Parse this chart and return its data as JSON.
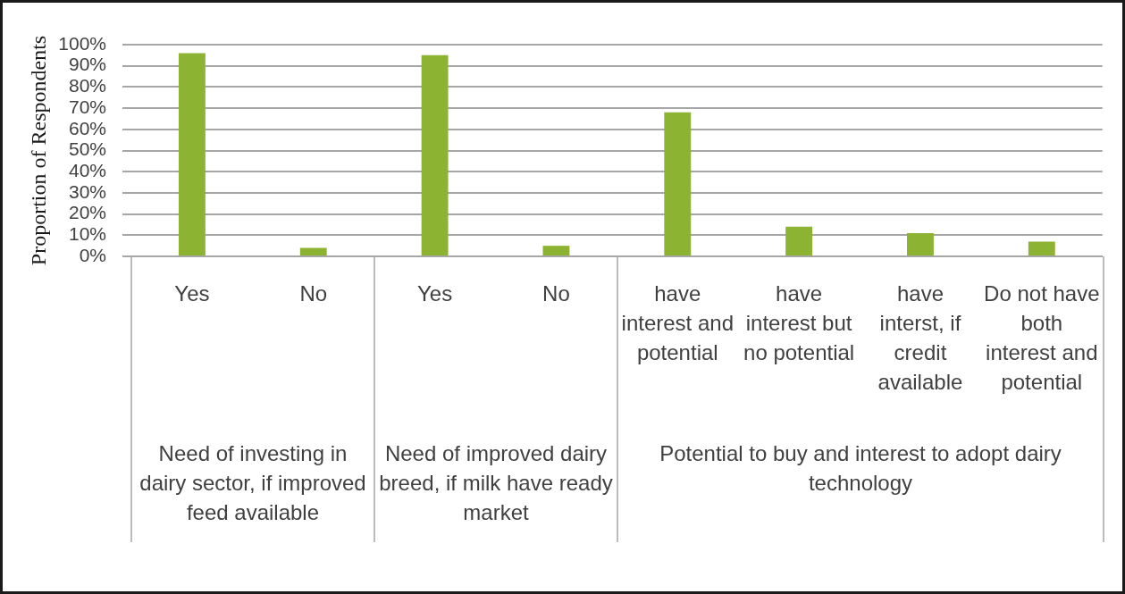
{
  "chart_data": {
    "type": "bar",
    "ylabel": "Proportion of Respondents",
    "categories": [
      "Yes",
      "No",
      "Yes",
      "No",
      "have interest and potential",
      "have interest but no potential",
      "have interst, if credit available",
      "Do not have both interest and potential"
    ],
    "values": [
      96,
      4,
      95,
      5,
      68,
      14,
      11,
      7
    ],
    "color": "#8db332",
    "ylim": [
      0,
      100
    ],
    "yticks": [
      {
        "value": 0,
        "label": "0%"
      },
      {
        "value": 10,
        "label": "10%"
      },
      {
        "value": 20,
        "label": "20%"
      },
      {
        "value": 30,
        "label": "30%"
      },
      {
        "value": 40,
        "label": "40%"
      },
      {
        "value": 50,
        "label": "50%"
      },
      {
        "value": 60,
        "label": "60%"
      },
      {
        "value": 70,
        "label": "70%"
      },
      {
        "value": 80,
        "label": "80%"
      },
      {
        "value": 90,
        "label": "90%"
      },
      {
        "value": 100,
        "label": "100%"
      }
    ],
    "grid": "y",
    "annotations": [
      "Need of investing in dairy sector, if improved feed available",
      "Need of improved dairy breed, if milk have ready market",
      "Potential to buy and interest to adopt dairy technology"
    ]
  }
}
